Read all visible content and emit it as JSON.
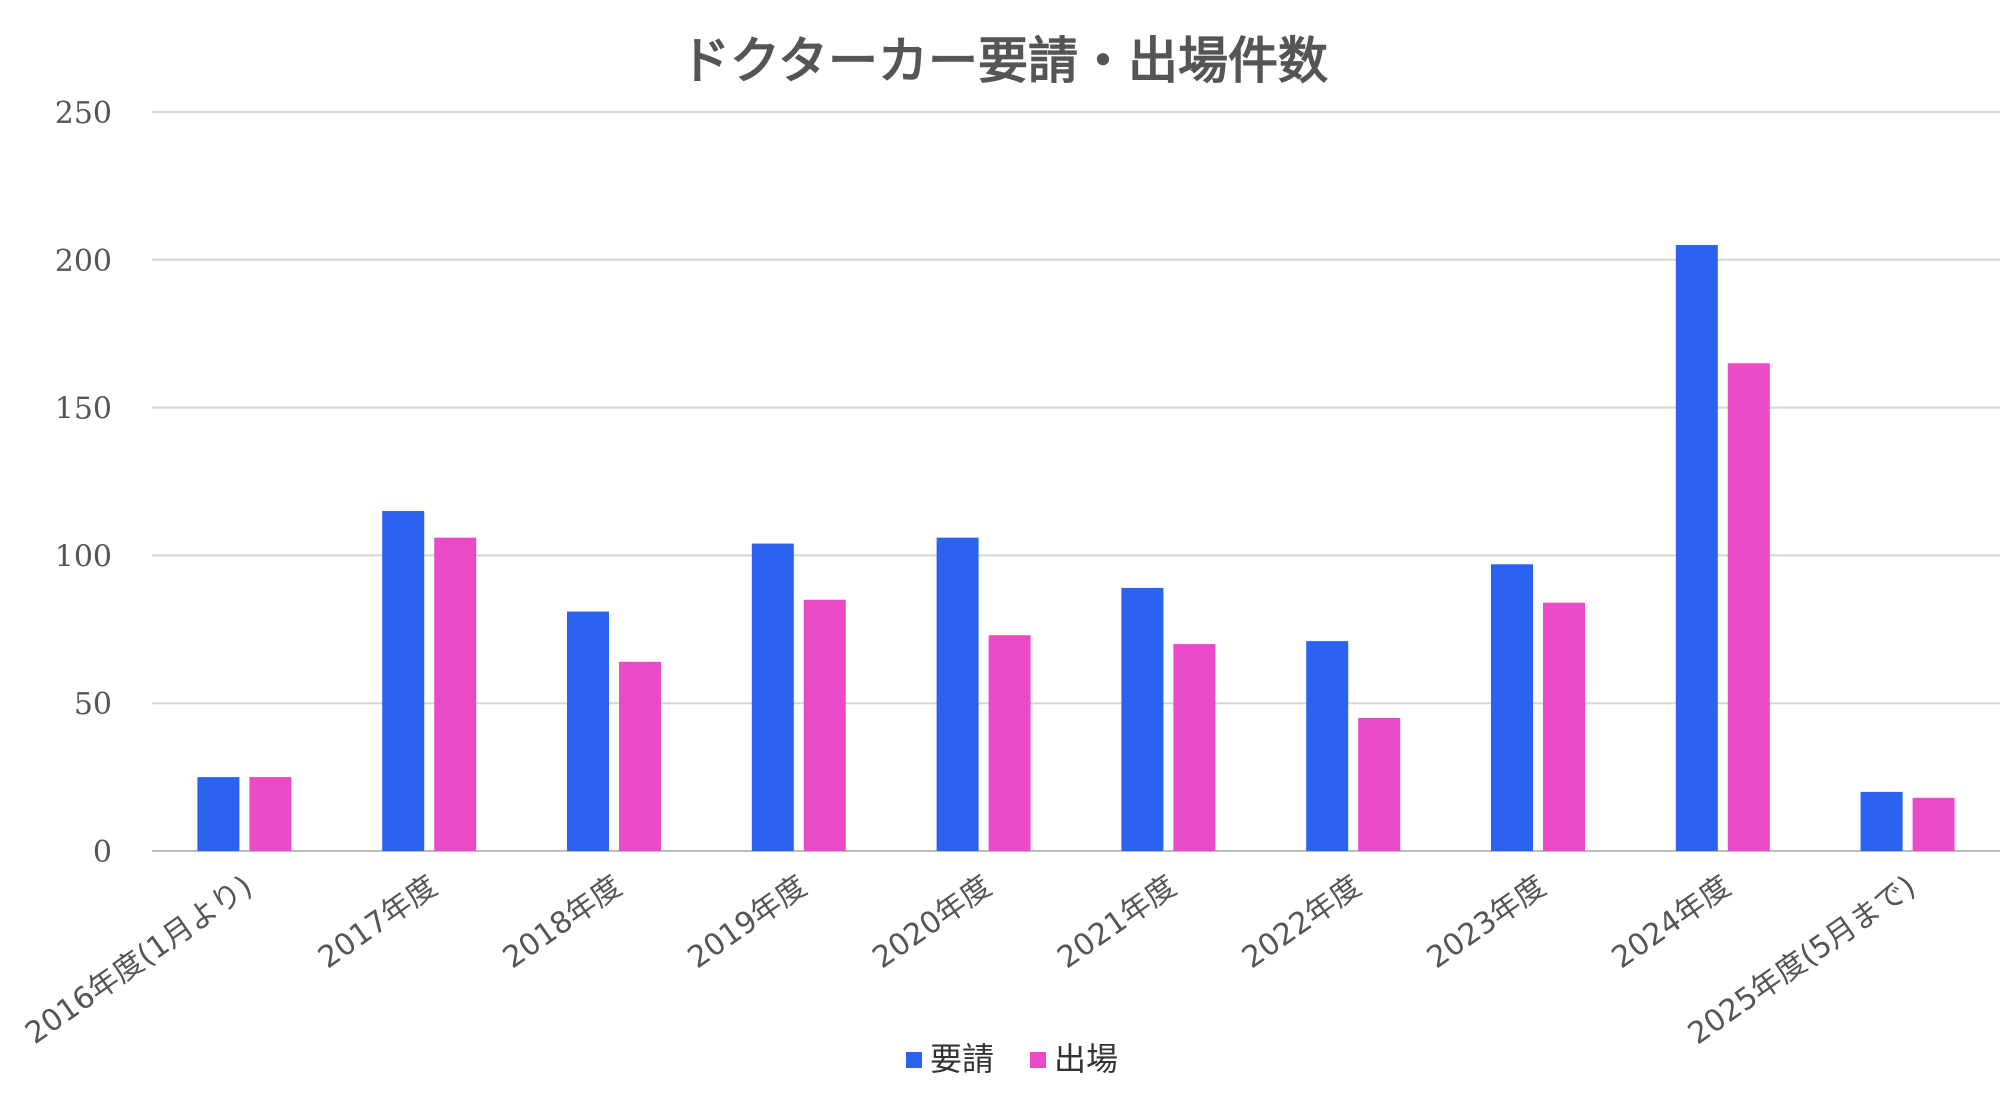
{
  "colors": {
    "request": "#2b63f0",
    "dispatch": "#ea4ac6",
    "text": "#555555",
    "grid": "#d6d6d6"
  },
  "chart_data": {
    "type": "bar",
    "title": "ドクターカー要請・出場件数",
    "xlabel": "",
    "ylabel": "",
    "ylim": [
      0,
      250
    ],
    "yticks": [
      0,
      50,
      100,
      150,
      200,
      250
    ],
    "grid": true,
    "legend_position": "bottom",
    "categories": [
      "2016年度(1月より)",
      "2017年度",
      "2018年度",
      "2019年度",
      "2020年度",
      "2021年度",
      "2022年度",
      "2023年度",
      "2024年度",
      "2025年度(5月まで)"
    ],
    "series": [
      {
        "name": "要請",
        "color": "#2b63f0",
        "values": [
          25,
          115,
          81,
          104,
          106,
          89,
          71,
          97,
          205,
          20
        ]
      },
      {
        "name": "出場",
        "color": "#ea4ac6",
        "values": [
          25,
          106,
          64,
          85,
          73,
          70,
          45,
          84,
          165,
          18
        ]
      }
    ]
  }
}
